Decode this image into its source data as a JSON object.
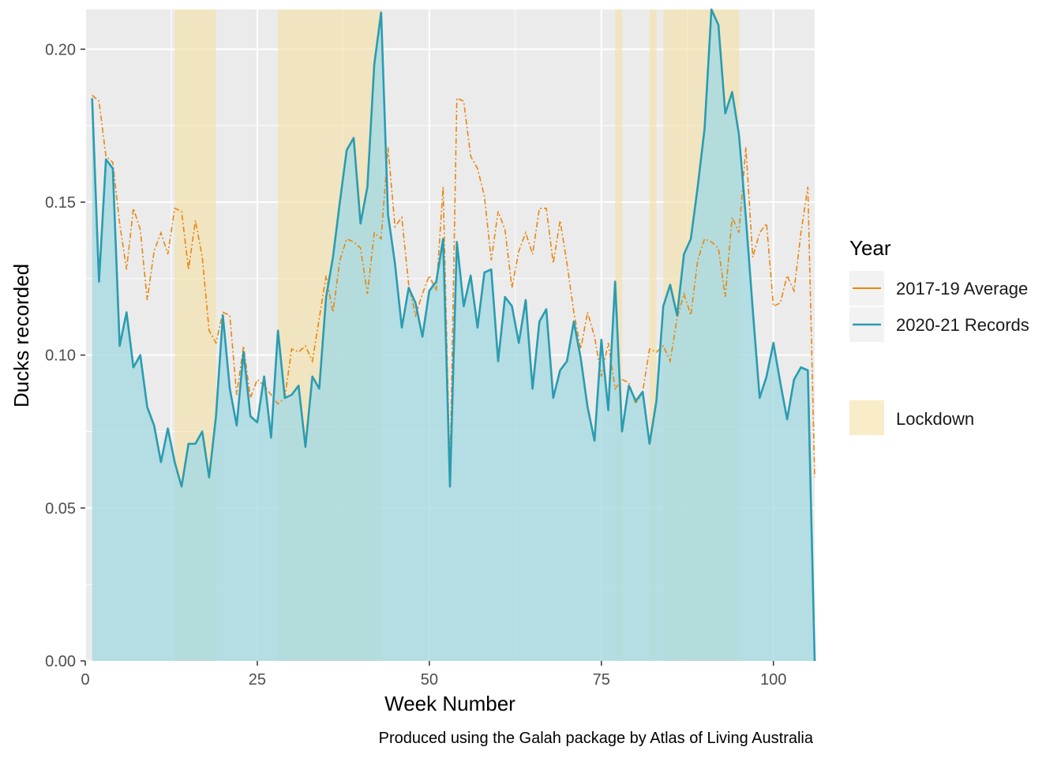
{
  "chart_data": {
    "type": "line",
    "xlabel": "Week Number",
    "ylabel": "Ducks recorded",
    "caption": "Produced using the Galah package by Atlas of Living Australia",
    "xlim": [
      0,
      106
    ],
    "ylim": [
      0,
      0.213
    ],
    "x_ticks": [
      0,
      25,
      50,
      75,
      100
    ],
    "x_tick_labels": [
      "0",
      "25",
      "50",
      "75",
      "100"
    ],
    "y_ticks": [
      0,
      0.05,
      0.1,
      0.15,
      0.2
    ],
    "y_tick_labels": [
      "0.00",
      "0.05",
      "0.10",
      "0.15",
      "0.20"
    ],
    "grid": true,
    "legend_position": "right",
    "legend": {
      "title": "Year",
      "lockdown_label": "Lockdown"
    },
    "lockdown_color": "#f5e0a3",
    "lockdown_periods": [
      [
        13,
        19
      ],
      [
        28,
        43
      ],
      [
        77,
        78
      ],
      [
        82,
        83
      ],
      [
        84,
        95
      ]
    ],
    "series": [
      {
        "name": "2017-19 Average",
        "color": "#e8860f",
        "dash": "dashdot",
        "x": [
          1,
          2,
          3,
          4,
          5,
          6,
          7,
          8,
          9,
          10,
          11,
          12,
          13,
          14,
          15,
          16,
          17,
          18,
          19,
          20,
          21,
          22,
          23,
          24,
          25,
          26,
          27,
          28,
          29,
          30,
          31,
          32,
          33,
          34,
          35,
          36,
          37,
          38,
          39,
          40,
          41,
          42,
          43,
          44,
          45,
          46,
          47,
          48,
          49,
          50,
          51,
          52,
          53,
          54,
          55,
          56,
          57,
          58,
          59,
          60,
          61,
          62,
          63,
          64,
          65,
          66,
          67,
          68,
          69,
          70,
          71,
          72,
          73,
          74,
          75,
          76,
          77,
          78,
          79,
          80,
          81,
          82,
          83,
          84,
          85,
          86,
          87,
          88,
          89,
          90,
          91,
          92,
          93,
          94,
          95,
          96,
          97,
          98,
          99,
          100,
          101,
          102,
          103,
          104,
          105,
          106
        ],
        "values": [
          0.185,
          0.183,
          0.165,
          0.163,
          0.143,
          0.128,
          0.148,
          0.141,
          0.118,
          0.134,
          0.14,
          0.133,
          0.148,
          0.147,
          0.128,
          0.144,
          0.132,
          0.108,
          0.104,
          0.114,
          0.113,
          0.087,
          0.103,
          0.086,
          0.092,
          0.09,
          0.087,
          0.084,
          0.086,
          0.102,
          0.101,
          0.103,
          0.098,
          0.112,
          0.126,
          0.114,
          0.131,
          0.138,
          0.137,
          0.135,
          0.12,
          0.14,
          0.138,
          0.168,
          0.142,
          0.145,
          0.123,
          0.113,
          0.12,
          0.126,
          0.121,
          0.155,
          0.061,
          0.184,
          0.183,
          0.165,
          0.161,
          0.152,
          0.131,
          0.147,
          0.141,
          0.122,
          0.134,
          0.14,
          0.133,
          0.148,
          0.148,
          0.13,
          0.144,
          0.13,
          0.114,
          0.102,
          0.114,
          0.106,
          0.093,
          0.104,
          0.089,
          0.092,
          0.091,
          0.084,
          0.088,
          0.102,
          0.101,
          0.103,
          0.098,
          0.112,
          0.12,
          0.113,
          0.131,
          0.138,
          0.137,
          0.135,
          0.119,
          0.145,
          0.14,
          0.168,
          0.132,
          0.14,
          0.143,
          0.116,
          0.117,
          0.126,
          0.121,
          0.14,
          0.155,
          0.06
        ]
      },
      {
        "name": "2020-21 Records",
        "color": "#2a9cb0",
        "dash": "solid",
        "x": [
          1,
          2,
          3,
          4,
          5,
          6,
          7,
          8,
          9,
          10,
          11,
          12,
          13,
          14,
          15,
          16,
          17,
          18,
          19,
          20,
          21,
          22,
          23,
          24,
          25,
          26,
          27,
          28,
          29,
          30,
          31,
          32,
          33,
          34,
          35,
          36,
          37,
          38,
          39,
          40,
          41,
          42,
          43,
          44,
          45,
          46,
          47,
          48,
          49,
          50,
          51,
          52,
          53,
          54,
          55,
          56,
          57,
          58,
          59,
          60,
          61,
          62,
          63,
          64,
          65,
          66,
          67,
          68,
          69,
          70,
          71,
          72,
          73,
          74,
          75,
          76,
          77,
          78,
          79,
          80,
          81,
          82,
          83,
          84,
          85,
          86,
          87,
          88,
          89,
          90,
          91,
          92,
          93,
          94,
          95,
          96,
          97,
          98,
          99,
          100,
          101,
          102,
          103,
          104,
          105,
          106
        ],
        "values": [
          0.184,
          0.124,
          0.164,
          0.161,
          0.103,
          0.114,
          0.096,
          0.1,
          0.083,
          0.077,
          0.065,
          0.076,
          0.065,
          0.057,
          0.071,
          0.071,
          0.075,
          0.06,
          0.08,
          0.113,
          0.089,
          0.077,
          0.101,
          0.08,
          0.078,
          0.093,
          0.073,
          0.108,
          0.086,
          0.087,
          0.09,
          0.07,
          0.093,
          0.089,
          0.119,
          0.132,
          0.15,
          0.167,
          0.171,
          0.143,
          0.155,
          0.195,
          0.212,
          0.146,
          0.13,
          0.109,
          0.122,
          0.117,
          0.106,
          0.121,
          0.124,
          0.138,
          0.057,
          0.137,
          0.116,
          0.126,
          0.109,
          0.127,
          0.128,
          0.098,
          0.119,
          0.116,
          0.104,
          0.118,
          0.089,
          0.111,
          0.115,
          0.086,
          0.095,
          0.098,
          0.111,
          0.099,
          0.083,
          0.072,
          0.105,
          0.082,
          0.124,
          0.075,
          0.09,
          0.085,
          0.088,
          0.071,
          0.085,
          0.116,
          0.123,
          0.113,
          0.133,
          0.138,
          0.155,
          0.174,
          0.213,
          0.208,
          0.179,
          0.186,
          0.172,
          0.145,
          0.115,
          0.086,
          0.093,
          0.104,
          0.091,
          0.079,
          0.092,
          0.096,
          0.095,
          0.0
        ]
      }
    ]
  }
}
